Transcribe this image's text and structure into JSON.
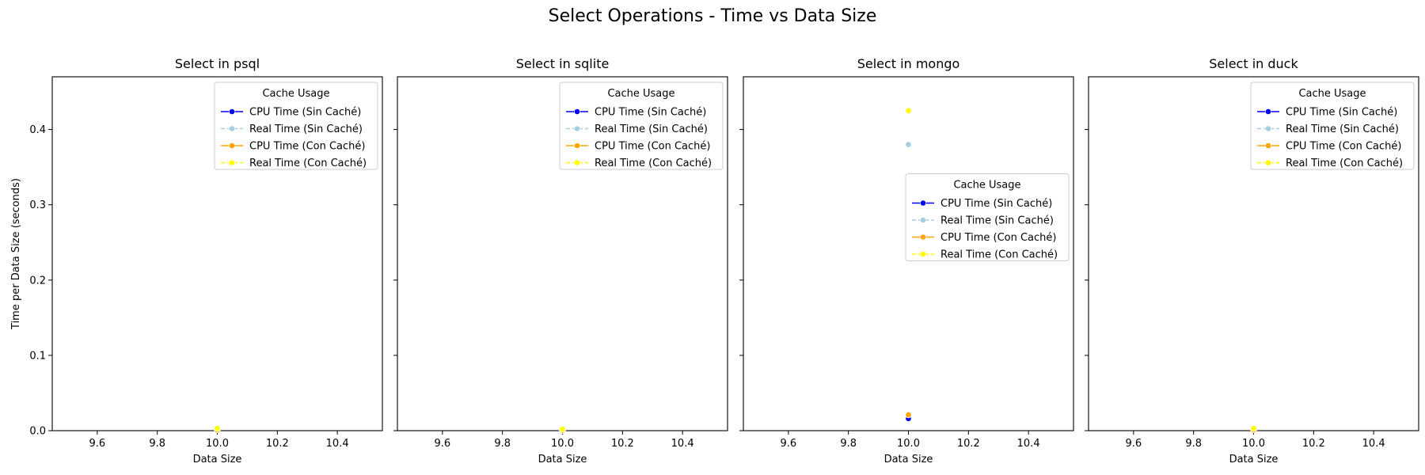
{
  "figure": {
    "title": "Select Operations - Time vs Data Size"
  },
  "colors": {
    "cpu_sin": "#0000ff",
    "real_sin": "#a6cee3",
    "cpu_con": "#ffa500",
    "real_con": "#ffff00"
  },
  "chart_data": [
    {
      "type": "line",
      "title": "Select in psql",
      "xlabel": "Data Size",
      "ylabel": "Time per Data Size (seconds)",
      "xlim": [
        9.45,
        10.55
      ],
      "ylim": [
        0,
        0.47
      ],
      "xticks": [
        9.6,
        9.8,
        10.0,
        10.2,
        10.4
      ],
      "yticks": [
        0.0,
        0.1,
        0.2,
        0.3,
        0.4
      ],
      "legend": {
        "title": "Cache Usage",
        "placement": "top-right"
      },
      "series": [
        {
          "name": "CPU Time (Sin Caché)",
          "color": "cpu_sin",
          "dashed": false,
          "x": [
            10.0
          ],
          "y": [
            0.001
          ]
        },
        {
          "name": "Real Time (Sin Caché)",
          "color": "real_sin",
          "dashed": true,
          "x": [
            10.0
          ],
          "y": [
            0.002
          ]
        },
        {
          "name": "CPU Time (Con Caché)",
          "color": "cpu_con",
          "dashed": false,
          "x": [
            10.0
          ],
          "y": [
            0.001
          ]
        },
        {
          "name": "Real Time (Con Caché)",
          "color": "real_con",
          "dashed": true,
          "x": [
            10.0
          ],
          "y": [
            0.003
          ]
        }
      ]
    },
    {
      "type": "line",
      "title": "Select in sqlite",
      "xlabel": "Data Size",
      "ylabel": "",
      "xlim": [
        9.45,
        10.55
      ],
      "ylim": [
        0,
        0.47
      ],
      "xticks": [
        9.6,
        9.8,
        10.0,
        10.2,
        10.4
      ],
      "yticks": [
        0.0,
        0.1,
        0.2,
        0.3,
        0.4
      ],
      "legend": {
        "title": "Cache Usage",
        "placement": "top-right"
      },
      "series": [
        {
          "name": "CPU Time (Sin Caché)",
          "color": "cpu_sin",
          "dashed": false,
          "x": [
            10.0
          ],
          "y": [
            0.0005
          ]
        },
        {
          "name": "Real Time (Sin Caché)",
          "color": "real_sin",
          "dashed": true,
          "x": [
            10.0
          ],
          "y": [
            0.001
          ]
        },
        {
          "name": "CPU Time (Con Caché)",
          "color": "cpu_con",
          "dashed": false,
          "x": [
            10.0
          ],
          "y": [
            0.0005
          ]
        },
        {
          "name": "Real Time (Con Caché)",
          "color": "real_con",
          "dashed": true,
          "x": [
            10.0
          ],
          "y": [
            0.002
          ]
        }
      ]
    },
    {
      "type": "line",
      "title": "Select in mongo",
      "xlabel": "Data Size",
      "ylabel": "",
      "xlim": [
        9.45,
        10.55
      ],
      "ylim": [
        0,
        0.47
      ],
      "xticks": [
        9.6,
        9.8,
        10.0,
        10.2,
        10.4
      ],
      "yticks": [
        0.0,
        0.1,
        0.2,
        0.3,
        0.4
      ],
      "legend": {
        "title": "Cache Usage",
        "placement": "center-right"
      },
      "series": [
        {
          "name": "CPU Time (Sin Caché)",
          "color": "cpu_sin",
          "dashed": false,
          "x": [
            10.0
          ],
          "y": [
            0.016
          ]
        },
        {
          "name": "Real Time (Sin Caché)",
          "color": "real_sin",
          "dashed": true,
          "x": [
            10.0
          ],
          "y": [
            0.38
          ]
        },
        {
          "name": "CPU Time (Con Caché)",
          "color": "cpu_con",
          "dashed": false,
          "x": [
            10.0
          ],
          "y": [
            0.021
          ]
        },
        {
          "name": "Real Time (Con Caché)",
          "color": "real_con",
          "dashed": true,
          "x": [
            10.0
          ],
          "y": [
            0.425
          ]
        }
      ]
    },
    {
      "type": "line",
      "title": "Select in duck",
      "xlabel": "Data Size",
      "ylabel": "",
      "xlim": [
        9.45,
        10.55
      ],
      "ylim": [
        0,
        0.47
      ],
      "xticks": [
        9.6,
        9.8,
        10.0,
        10.2,
        10.4
      ],
      "yticks": [
        0.0,
        0.1,
        0.2,
        0.3,
        0.4
      ],
      "legend": {
        "title": "Cache Usage",
        "placement": "top-right"
      },
      "series": [
        {
          "name": "CPU Time (Sin Caché)",
          "color": "cpu_sin",
          "dashed": false,
          "x": [
            10.0
          ],
          "y": [
            0.001
          ]
        },
        {
          "name": "Real Time (Sin Caché)",
          "color": "real_sin",
          "dashed": true,
          "x": [
            10.0
          ],
          "y": [
            0.002
          ]
        },
        {
          "name": "CPU Time (Con Caché)",
          "color": "cpu_con",
          "dashed": false,
          "x": [
            10.0
          ],
          "y": [
            0.001
          ]
        },
        {
          "name": "Real Time (Con Caché)",
          "color": "real_con",
          "dashed": true,
          "x": [
            10.0
          ],
          "y": [
            0.003
          ]
        }
      ]
    }
  ]
}
